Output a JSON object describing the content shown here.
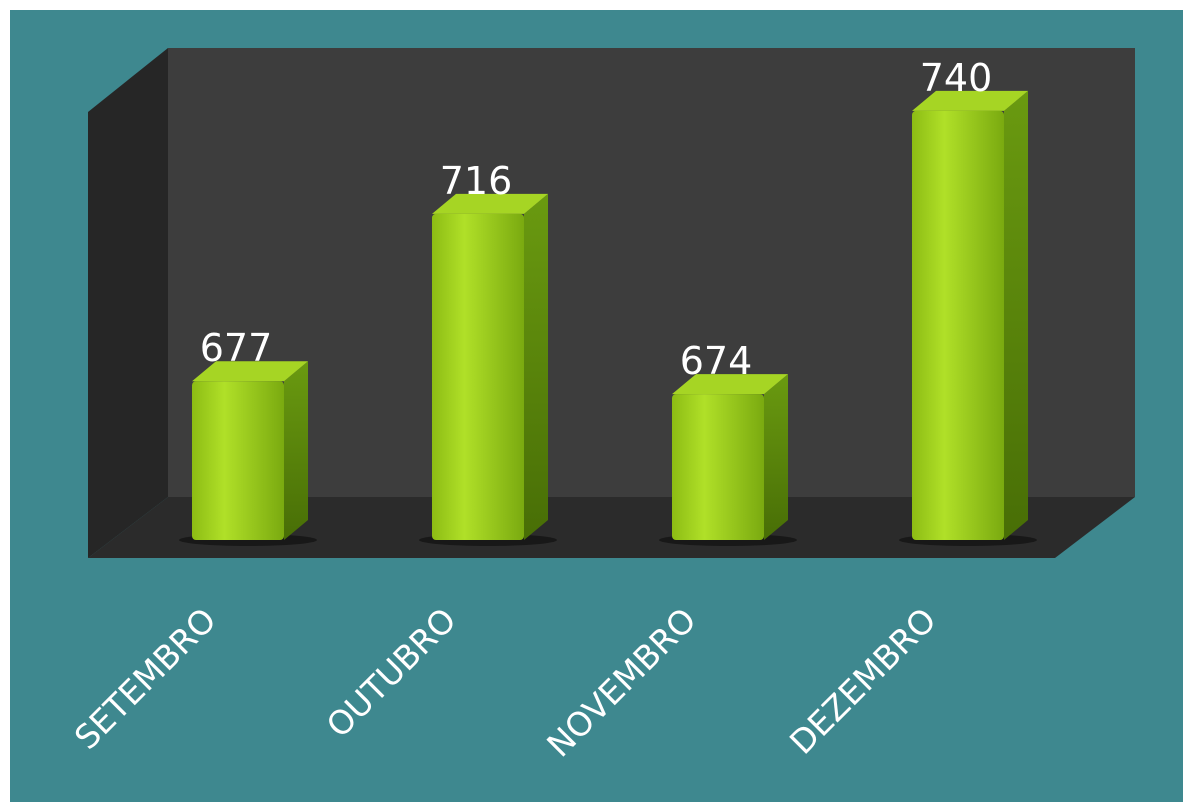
{
  "chart_data": {
    "type": "bar",
    "categories": [
      "SETEMBRO",
      "OUTUBRO",
      "NOVEMBRO",
      "DEZEMBRO"
    ],
    "values": [
      677,
      716,
      674,
      740
    ],
    "color": "#9ccc1c",
    "ylim": [
      640,
      750
    ]
  }
}
